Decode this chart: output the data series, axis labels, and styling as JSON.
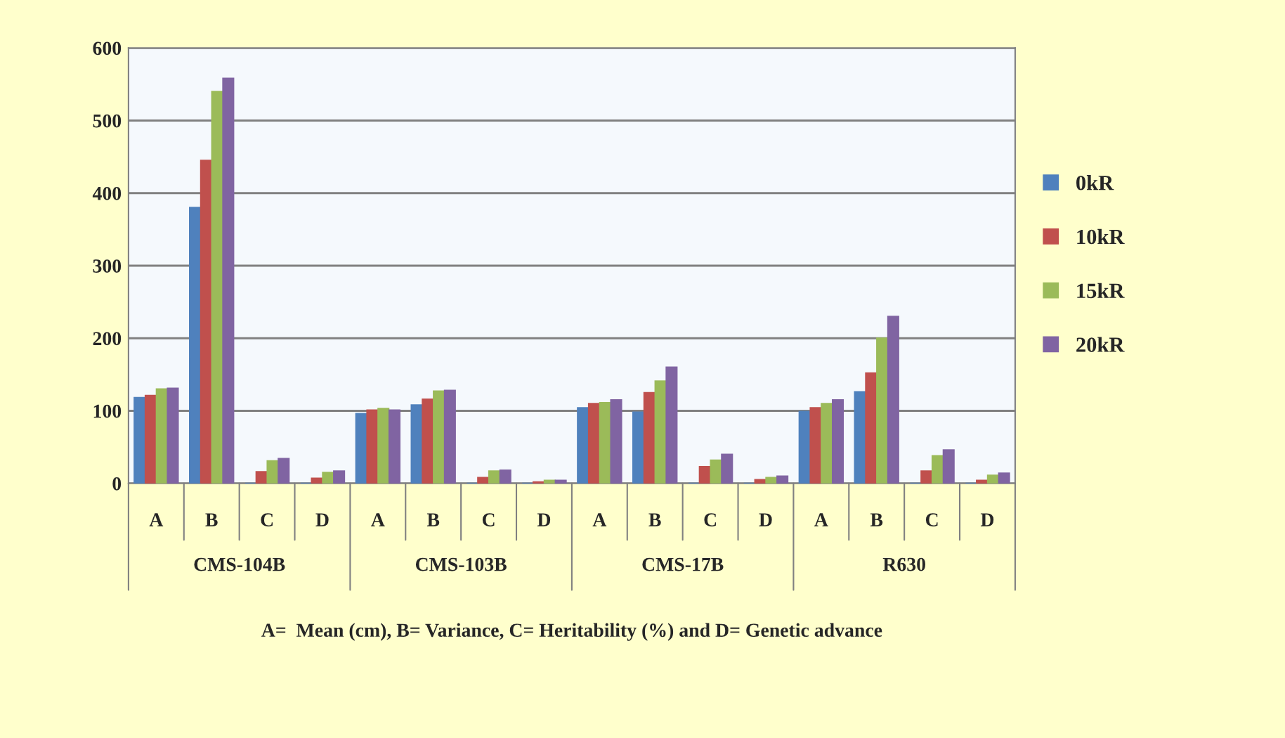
{
  "chart_data": {
    "type": "bar",
    "xlabel": "A=  Mean (cm), B= Variance, C= Heritability (%) and D= Genetic advance",
    "categories": [
      "A",
      "B",
      "C",
      "D",
      "A",
      "B",
      "C",
      "D",
      "A",
      "B",
      "C",
      "D",
      "A",
      "B",
      "C",
      "D"
    ],
    "annotations": [
      "CMS-104B",
      "CMS-103B",
      "CMS-17B",
      "R630"
    ],
    "series": [
      {
        "name": "0kR",
        "color": "#4f81bd",
        "values": [
          118,
          380,
          0,
          0,
          96,
          108,
          0,
          0,
          104,
          98,
          0,
          0,
          99,
          126,
          0,
          0
        ]
      },
      {
        "name": "10kR",
        "color": "#c0504d",
        "values": [
          121,
          445,
          16,
          7,
          101,
          116,
          8,
          2,
          110,
          125,
          23,
          5,
          104,
          152,
          17,
          4
        ]
      },
      {
        "name": "15kR",
        "color": "#9bbb59",
        "values": [
          130,
          540,
          31,
          15,
          103,
          127,
          17,
          4,
          111,
          141,
          32,
          8,
          110,
          200,
          38,
          11
        ]
      },
      {
        "name": "20kR",
        "color": "#8064a2",
        "values": [
          131,
          558,
          34,
          17,
          101,
          128,
          18,
          4,
          115,
          160,
          40,
          10,
          115,
          230,
          46,
          14
        ]
      }
    ],
    "ylim": [
      0,
      600
    ],
    "yticks": [
      0,
      100,
      200,
      300,
      400,
      500,
      600
    ],
    "grid": "y",
    "legend": "right"
  }
}
